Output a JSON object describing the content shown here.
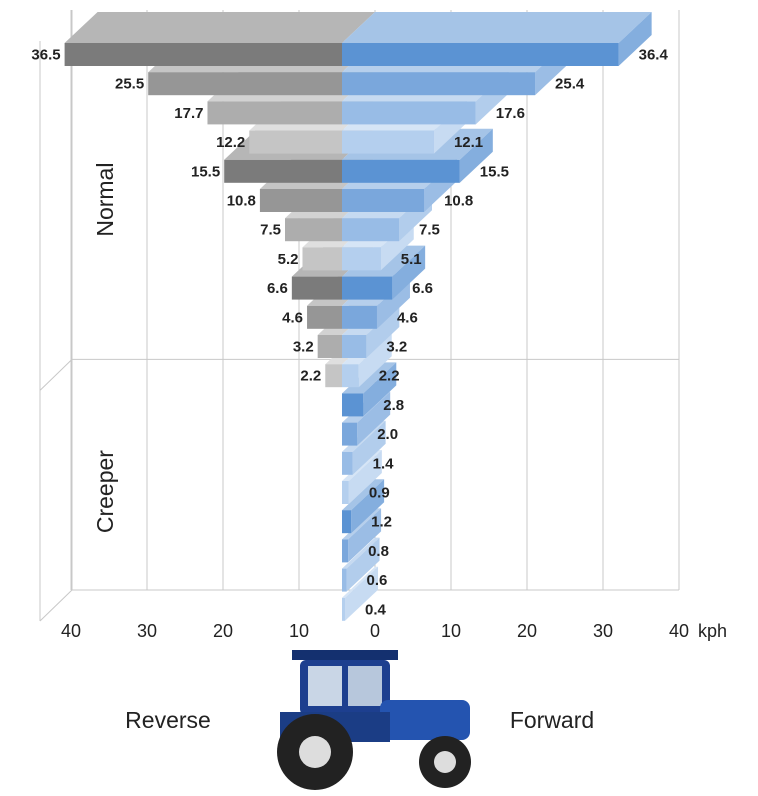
{
  "chart_data": {
    "type": "butterfly-bar-3d",
    "groups": [
      "Normal",
      "Creeper"
    ],
    "x_label": "kph",
    "xlim": [
      -40,
      40
    ],
    "xticks": [
      {
        "value": -40,
        "label": "40"
      },
      {
        "value": -30,
        "label": "30"
      },
      {
        "value": -20,
        "label": "20"
      },
      {
        "value": -10,
        "label": "10"
      },
      0,
      10,
      20,
      30,
      40
    ],
    "series": [
      {
        "name": "Reverse",
        "side": "left",
        "colors": [
          "#7b7b7b",
          "#969696",
          "#adadad",
          "#c5c5c5"
        ],
        "values": [
          36.5,
          25.5,
          17.7,
          12.2,
          15.5,
          10.8,
          7.5,
          5.2,
          6.6,
          4.6,
          3.2,
          2.2,
          null,
          null,
          null,
          null,
          null,
          null,
          null,
          null
        ],
        "value_labels": [
          "36.5",
          "25.5",
          "17.7",
          "12.2",
          "15.5",
          "10.8",
          "7.5",
          "5.2",
          "6.6",
          "4.6",
          "3.2",
          "2.2",
          null,
          null,
          null,
          null,
          null,
          null,
          null,
          null
        ]
      },
      {
        "name": "Forward",
        "side": "right",
        "colors": [
          "#5b93d3",
          "#7aa7dc",
          "#98bce6",
          "#b4cfee"
        ],
        "values": [
          36.4,
          25.4,
          17.6,
          12.1,
          15.5,
          10.8,
          7.5,
          5.1,
          6.6,
          4.6,
          3.2,
          2.2,
          2.8,
          2.0,
          1.4,
          0.9,
          1.2,
          0.8,
          0.6,
          0.4
        ],
        "value_labels": [
          "36.4",
          "25.4",
          "17.6",
          "12.1",
          "15.5",
          "10.8",
          "7.5",
          "5.1",
          "6.6",
          "4.6",
          "3.2",
          "2.2",
          "2.8",
          "2.0",
          "1.4",
          "0.9",
          "1.2",
          "0.8",
          "0.6",
          "0.4"
        ]
      }
    ]
  }
}
